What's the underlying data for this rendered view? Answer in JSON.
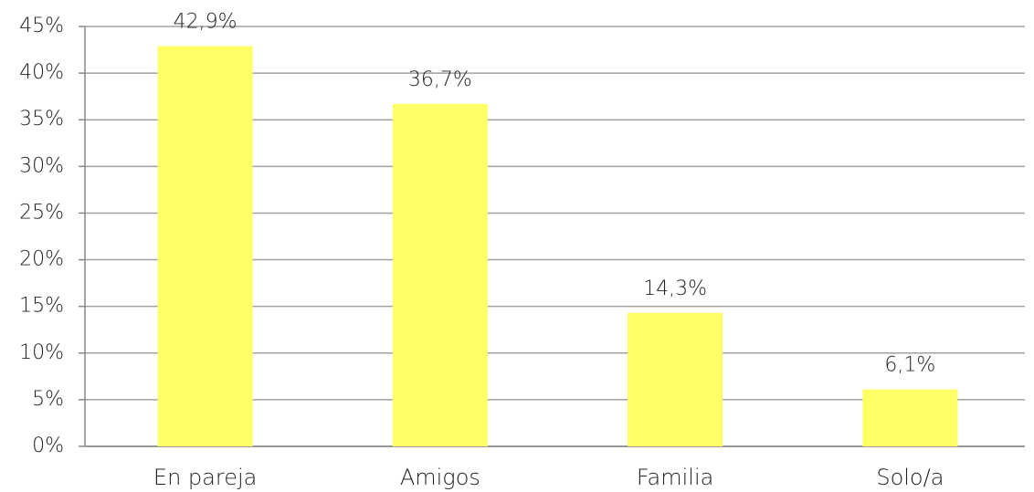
{
  "chart_data": {
    "type": "bar",
    "categories": [
      "En pareja",
      "Amigos",
      "Familia",
      "Solo/a"
    ],
    "values": [
      42.9,
      36.7,
      14.3,
      6.1
    ],
    "value_labels": [
      "42,9%",
      "36,7%",
      "14,3%",
      "6,1%"
    ],
    "color": "#ffff66",
    "ylim": [
      0,
      45
    ],
    "yticks": [
      {
        "value": 0,
        "label": "0%"
      },
      {
        "value": 5,
        "label": "5%"
      },
      {
        "value": 10,
        "label": "10%"
      },
      {
        "value": 15,
        "label": "15%"
      },
      {
        "value": 20,
        "label": "20%"
      },
      {
        "value": 25,
        "label": "25%"
      },
      {
        "value": 30,
        "label": "30%"
      },
      {
        "value": 35,
        "label": "35%"
      },
      {
        "value": 40,
        "label": "40%"
      },
      {
        "value": 45,
        "label": "45%"
      }
    ],
    "grid": true
  }
}
